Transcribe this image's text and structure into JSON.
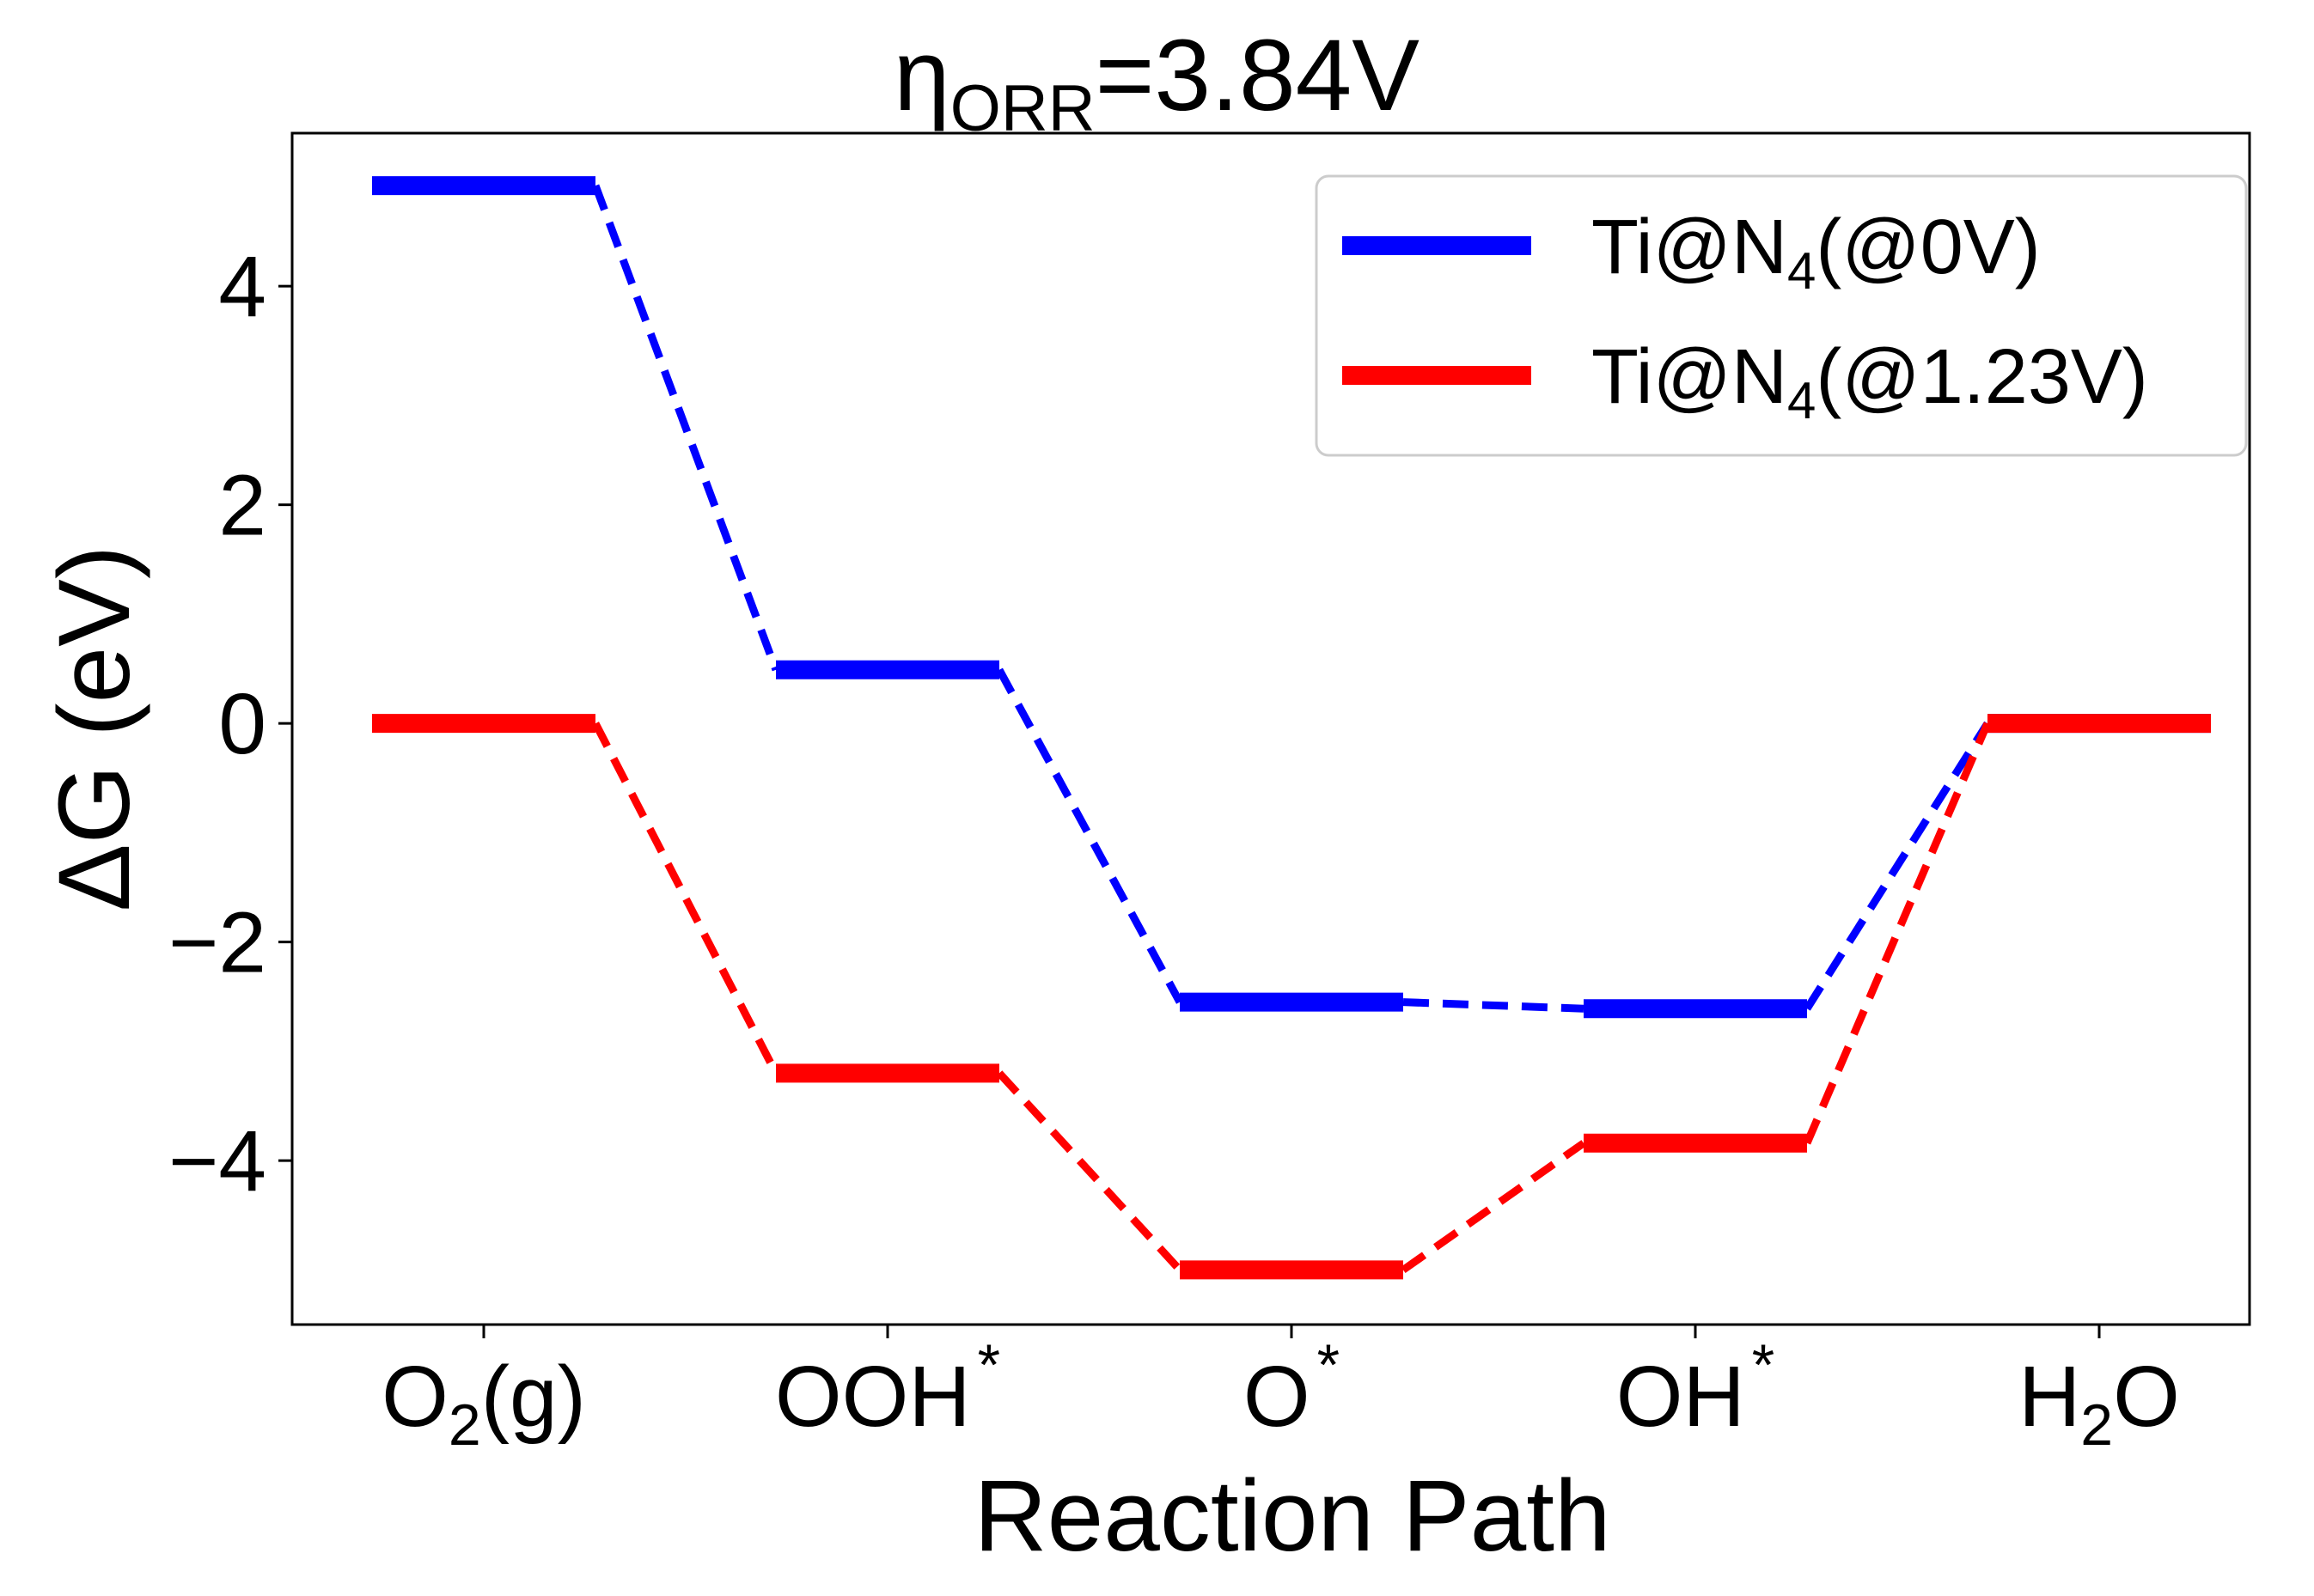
{
  "chart_data": {
    "type": "line",
    "title": {
      "main": "η",
      "sub": "ORR",
      "rest": "=3.84V"
    },
    "xlabel": "Reaction Path",
    "ylabel": "ΔG (eV)",
    "categories": [
      {
        "main": "O",
        "sub": "2",
        "rest": "(g)",
        "sup": ""
      },
      {
        "main": "OOH",
        "sub": "",
        "rest": "",
        "sup": "*"
      },
      {
        "main": "O",
        "sub": "",
        "rest": "",
        "sup": "*"
      },
      {
        "main": "OH",
        "sub": "",
        "rest": "",
        "sup": "*"
      },
      {
        "main": "H",
        "sub": "2",
        "rest": "O",
        "sup": ""
      }
    ],
    "ylim": [
      -5.5,
      5.4
    ],
    "yticks": [
      -4,
      -2,
      0,
      2,
      4
    ],
    "ytick_labels": [
      "−4",
      "−2",
      "0",
      "2",
      "4"
    ],
    "grid": false,
    "legend_position": "top-right",
    "series": [
      {
        "name": {
          "main": "Ti@N",
          "sub": "4",
          "rest": "(@0V)"
        },
        "color": "#0000ff",
        "values": [
          4.92,
          0.49,
          -2.55,
          -2.61,
          0.0
        ]
      },
      {
        "name": {
          "main": "Ti@N",
          "sub": "4",
          "rest": "(@1.23V)"
        },
        "color": "#ff0000",
        "values": [
          0.0,
          -3.2,
          -5.0,
          -3.84,
          0.0
        ]
      }
    ]
  }
}
